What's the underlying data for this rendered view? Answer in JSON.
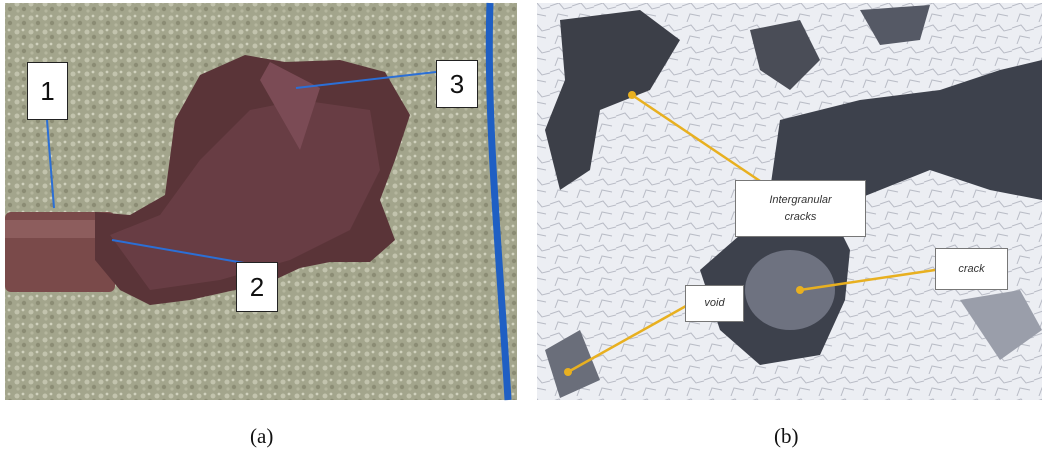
{
  "panels": [
    {
      "caption": "(a)",
      "labels": [
        "1",
        "2",
        "3"
      ]
    },
    {
      "caption": "(b)",
      "labels": [
        "Intergranular cracks",
        "crack",
        "void"
      ]
    }
  ]
}
